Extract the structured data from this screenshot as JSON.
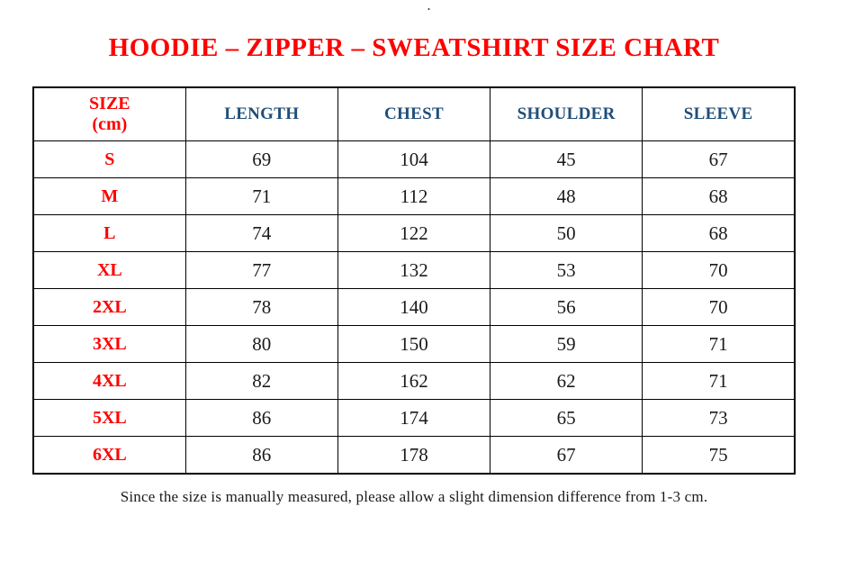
{
  "page": {
    "stray_mark": ".",
    "title": "HOODIE – ZIPPER – SWEATSHIRT SIZE CHART",
    "footnote": "Since the size is manually measured, please allow a slight dimension difference from 1-3 cm."
  },
  "colors": {
    "title_red": "#FF0000",
    "header_blue": "#1F4E79",
    "body_text": "#1A1A1A",
    "border": "#000000"
  },
  "table": {
    "size_header": {
      "line1": "SIZE",
      "line2": "(cm)"
    },
    "measure_headers": [
      "LENGTH",
      "CHEST",
      "SHOULDER",
      "SLEEVE"
    ],
    "rows": [
      {
        "size": "S",
        "length": "69",
        "chest": "104",
        "shoulder": "45",
        "sleeve": "67"
      },
      {
        "size": "M",
        "length": "71",
        "chest": "112",
        "shoulder": "48",
        "sleeve": "68"
      },
      {
        "size": "L",
        "length": "74",
        "chest": "122",
        "shoulder": "50",
        "sleeve": "68"
      },
      {
        "size": "XL",
        "length": "77",
        "chest": "132",
        "shoulder": "53",
        "sleeve": "70"
      },
      {
        "size": "2XL",
        "length": "78",
        "chest": "140",
        "shoulder": "56",
        "sleeve": "70"
      },
      {
        "size": "3XL",
        "length": "80",
        "chest": "150",
        "shoulder": "59",
        "sleeve": "71"
      },
      {
        "size": "4XL",
        "length": "82",
        "chest": "162",
        "shoulder": "62",
        "sleeve": "71"
      },
      {
        "size": "5XL",
        "length": "86",
        "chest": "174",
        "shoulder": "65",
        "sleeve": "73"
      },
      {
        "size": "6XL",
        "length": "86",
        "chest": "178",
        "shoulder": "67",
        "sleeve": "75"
      }
    ]
  },
  "chart_data": {
    "type": "table",
    "title": "HOODIE – ZIPPER – SWEATSHIRT SIZE CHART",
    "columns": [
      "SIZE (cm)",
      "LENGTH",
      "CHEST",
      "SHOULDER",
      "SLEEVE"
    ],
    "rows": [
      [
        "S",
        69,
        104,
        45,
        67
      ],
      [
        "M",
        71,
        112,
        48,
        68
      ],
      [
        "L",
        74,
        122,
        50,
        68
      ],
      [
        "XL",
        77,
        132,
        53,
        70
      ],
      [
        "2XL",
        78,
        140,
        56,
        70
      ],
      [
        "3XL",
        80,
        150,
        59,
        71
      ],
      [
        "4XL",
        82,
        162,
        62,
        71
      ],
      [
        "5XL",
        86,
        174,
        65,
        73
      ],
      [
        "6XL",
        86,
        178,
        67,
        75
      ]
    ]
  }
}
